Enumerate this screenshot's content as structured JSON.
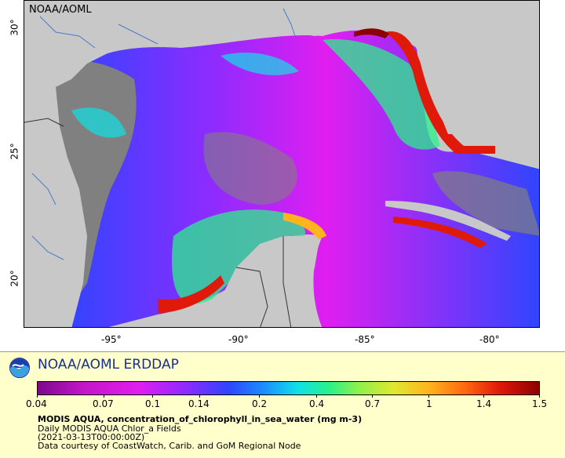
{
  "map": {
    "credit": "NOAA/AOML",
    "x_ticks": [
      "-95°",
      "-90°",
      "-85°",
      "-80°"
    ],
    "y_ticks": [
      "30°",
      "25°",
      "20°"
    ]
  },
  "legend": {
    "brand": "NOAA/AOML ERDDAP",
    "colorbar_ticks": [
      "0.04",
      "0.07",
      "0.1",
      "0.14",
      "0.2",
      "0.4",
      "0.7",
      "1",
      "1.4",
      "1.5"
    ],
    "title": "MODIS AQUA, concentration_of_chlorophyll_in_sea_water (mg m-3)",
    "line1": "Daily MODIS AQUA Chlor_a Fields",
    "line2": "(2021-03-13T00:00:00Z)",
    "line3": "Data courtesy of CoastWatch, Carib. and GoM Regional Node"
  },
  "colors": {
    "land": "#c8c8c8",
    "no_data": "#808080",
    "legend_bg": "#ffffcc",
    "brand": "#1a2e8c"
  }
}
